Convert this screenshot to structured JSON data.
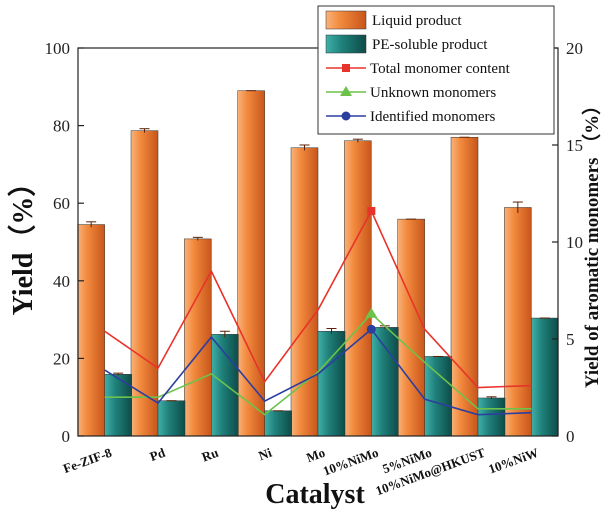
{
  "chart_data": {
    "type": "bar",
    "categories": [
      "Fe-ZIF-8",
      "Pd",
      "Ru",
      "Ni",
      "Mo",
      "10%NiMo",
      "5%NiMo",
      "10%NiMo@HKUST",
      "10%NiW"
    ],
    "xlabel": "Catalyst",
    "ylabel": "Yield（%）",
    "y2label": "Yield of aromatic monomers （%）",
    "ylim": [
      0,
      100
    ],
    "yticks": [
      0,
      20,
      40,
      60,
      80,
      100
    ],
    "y2lim": [
      0,
      20
    ],
    "y2ticks": [
      0,
      5,
      10,
      15,
      20
    ],
    "legend_position": "top-right",
    "bar_series": [
      {
        "name": "Liquid product",
        "axis": "left",
        "color": "#e8762b",
        "values": [
          54.5,
          78.7,
          50.8,
          89.0,
          74.3,
          76.1,
          55.9,
          77.0,
          58.9
        ],
        "errors": [
          0.7,
          0.5,
          0.4,
          0.0,
          0.7,
          0.4,
          0.0,
          0.0,
          1.4
        ]
      },
      {
        "name": "PE-soluble product",
        "axis": "left",
        "color": "#1f7f7a",
        "values": [
          15.9,
          9.1,
          26.2,
          6.5,
          27.0,
          28.0,
          20.5,
          9.8,
          30.4
        ],
        "errors": [
          0.3,
          0.0,
          0.8,
          0.0,
          0.7,
          0.4,
          0.0,
          0.3,
          0.0
        ]
      }
    ],
    "line_series": [
      {
        "name": "Total monomer content",
        "axis": "right",
        "color": "#e8332b",
        "marker": "square",
        "values": [
          5.4,
          3.5,
          8.5,
          2.8,
          6.5,
          11.6,
          5.5,
          2.5,
          2.6
        ]
      },
      {
        "name": "Unknown monomers",
        "axis": "right",
        "color": "#6cc24a",
        "marker": "triangle",
        "values": [
          2.0,
          2.0,
          3.2,
          1.1,
          3.3,
          6.3,
          3.8,
          1.4,
          1.4
        ]
      },
      {
        "name": "Identified monomers",
        "axis": "right",
        "color": "#2c3e9e",
        "marker": "circle",
        "values": [
          3.4,
          1.7,
          5.1,
          1.8,
          3.2,
          5.5,
          1.9,
          1.1,
          1.2
        ]
      }
    ]
  }
}
